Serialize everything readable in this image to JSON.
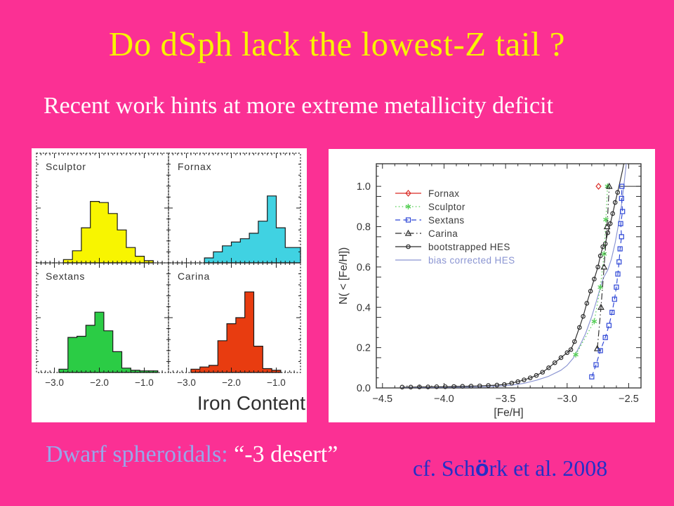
{
  "slide": {
    "title": "Do dSph lack the lowest-Z tail ?",
    "subtitle": "Recent work hints at more extreme metallicity deficit",
    "background_color": "#fb3094",
    "title_color": "#f8f400",
    "subtitle_color": "#ffffff"
  },
  "footer": {
    "left_term": "Dwarf spheroidals:",
    "left_quote": " “-3 desert”",
    "left_term_color": "#98a6ea",
    "left_quote_color": "#ffffff",
    "citation_prefix": "cf. Sch",
    "citation_o": "ö",
    "citation_suffix": "rk et al. 2008",
    "citation_color": "#2430c6"
  },
  "chart_data": [
    {
      "id": "dsph_iron_histograms",
      "type": "bar",
      "subtype": "histogram_grid_2x2",
      "xlabel": "Iron Content",
      "x_range": [
        -3.4,
        -0.46
      ],
      "x_ticks": [
        -3.0,
        -2.0,
        -1.0
      ],
      "x_tick_labels": [
        "−3.0",
        "−2.0",
        "−1.0"
      ],
      "text_color": "#333333",
      "panels": [
        {
          "name": "Sculptor",
          "color": "#f8f500",
          "bin_start": -2.8,
          "bin_width": 0.2,
          "values": [
            0.03,
            0.11,
            0.32,
            0.56,
            0.55,
            0.45,
            0.3,
            0.14,
            0.06,
            0.02
          ]
        },
        {
          "name": "Fornax",
          "color": "#40d2e2",
          "bin_start": -2.6,
          "bin_width": 0.2,
          "values": [
            0.045,
            0.1,
            0.155,
            0.19,
            0.22,
            0.27,
            0.38,
            0.61,
            0.32,
            0.14,
            0.14
          ]
        },
        {
          "name": "Sextans",
          "color": "#2bcc45",
          "bin_start": -2.9,
          "bin_width": 0.2,
          "values": [
            0.03,
            0.32,
            0.33,
            0.43,
            0.55,
            0.38,
            0.19,
            0.04,
            0.02,
            0.015,
            0.015
          ]
        },
        {
          "name": "Carina",
          "color": "#e83c10",
          "bin_start": -2.9,
          "bin_width": 0.2,
          "values": [
            0.03,
            0.05,
            0.065,
            0.29,
            0.445,
            0.5,
            0.735,
            0.24,
            0.035,
            0.02
          ]
        }
      ]
    },
    {
      "id": "cumulative_metallicity",
      "type": "line",
      "xlabel": "[Fe/H]",
      "ylabel": "N( < [Fe/H])",
      "x_range": [
        -4.55,
        -2.4
      ],
      "y_range": [
        0,
        1.112
      ],
      "x_ticks": [
        -4.5,
        -4.0,
        -3.5,
        -3.0,
        -2.5
      ],
      "x_tick_labels": [
        "−4.5",
        "−4.0",
        "−3.5",
        "−3.0",
        "−2.5"
      ],
      "y_ticks": [
        0.0,
        0.2,
        0.4,
        0.6,
        0.8,
        1.0
      ],
      "y_tick_labels": [
        "0.0",
        "0.2",
        "0.4",
        "0.6",
        "0.8",
        "1.0"
      ],
      "text_color": "#333333",
      "legend_position": "upper-left",
      "top_reference_line": {
        "y": 1.0,
        "x_start": -2.57,
        "x_end": -2.4,
        "color": "#2b2b2b"
      },
      "series": [
        {
          "name": "Fornax",
          "color": "#d92b25",
          "marker": "diamond",
          "line": "solid",
          "points": [
            [
              -2.745,
              1.0
            ]
          ]
        },
        {
          "name": "Sculptor",
          "color": "#58cf58",
          "marker": "asterisk",
          "line": "dotted",
          "points": [
            [
              -2.93,
              0.165
            ],
            [
              -2.78,
              0.33
            ],
            [
              -2.73,
              0.5
            ],
            [
              -2.7,
              0.665
            ],
            [
              -2.685,
              0.835
            ],
            [
              -2.672,
              1.0
            ]
          ]
        },
        {
          "name": "Sextans",
          "color": "#2c45d6",
          "marker": "square",
          "line": "dashed",
          "points": [
            [
              -2.8,
              0.055
            ],
            [
              -2.765,
              0.115
            ],
            [
              -2.73,
              0.185
            ],
            [
              -2.69,
              0.25
            ],
            [
              -2.66,
              0.31
            ],
            [
              -2.635,
              0.375
            ],
            [
              -2.615,
              0.44
            ],
            [
              -2.6,
              0.5
            ],
            [
              -2.588,
              0.565
            ],
            [
              -2.578,
              0.625
            ],
            [
              -2.57,
              0.69
            ],
            [
              -2.558,
              0.75
            ],
            [
              -2.565,
              0.815
            ],
            [
              -2.55,
              0.875
            ],
            [
              -2.558,
              0.94
            ],
            [
              -2.555,
              1.0
            ]
          ]
        },
        {
          "name": "Carina",
          "color": "#2b2b2b",
          "marker": "triangle",
          "line": "dashdot",
          "points": [
            [
              -2.755,
              0.195
            ],
            [
              -2.725,
              0.4
            ],
            [
              -2.7,
              0.6
            ],
            [
              -2.676,
              0.8
            ],
            [
              -2.658,
              1.0
            ]
          ]
        },
        {
          "name": "bootstrapped HES",
          "color": "#2b2b2b",
          "marker": "circle",
          "line": "solid",
          "points": [
            [
              -4.34,
              0.004
            ],
            [
              -4.27,
              0.004
            ],
            [
              -4.2,
              0.005
            ],
            [
              -4.13,
              0.005
            ],
            [
              -4.06,
              0.006
            ],
            [
              -3.99,
              0.006
            ],
            [
              -3.92,
              0.007
            ],
            [
              -3.85,
              0.008
            ],
            [
              -3.78,
              0.009
            ],
            [
              -3.71,
              0.01
            ],
            [
              -3.64,
              0.012
            ],
            [
              -3.57,
              0.014
            ],
            [
              -3.51,
              0.017
            ],
            [
              -3.45,
              0.024
            ],
            [
              -3.4,
              0.031
            ],
            [
              -3.35,
              0.04
            ],
            [
              -3.3,
              0.05
            ],
            [
              -3.25,
              0.062
            ],
            [
              -3.2,
              0.078
            ],
            [
              -3.15,
              0.1
            ],
            [
              -3.1,
              0.125
            ],
            [
              -3.05,
              0.15
            ],
            [
              -3.0,
              0.175
            ],
            [
              -2.97,
              0.19
            ],
            [
              -2.94,
              0.23
            ],
            [
              -2.9,
              0.3
            ],
            [
              -2.87,
              0.355
            ],
            [
              -2.84,
              0.42
            ],
            [
              -2.81,
              0.48
            ],
            [
              -2.78,
              0.54
            ],
            [
              -2.75,
              0.6
            ],
            [
              -2.73,
              0.655
            ],
            [
              -2.71,
              0.7
            ],
            [
              -2.69,
              0.715
            ],
            [
              -2.67,
              0.77
            ],
            [
              -2.65,
              0.815
            ],
            [
              -2.63,
              0.865
            ],
            [
              -2.61,
              0.92
            ],
            [
              -2.59,
              0.97
            ],
            [
              -2.57,
              1.025
            ],
            [
              -2.55,
              1.08
            ],
            [
              -2.54,
              1.112
            ]
          ]
        },
        {
          "name": "bias corrected HES",
          "color": "#8a94d2",
          "marker": "none",
          "line": "solid",
          "label_colored": true,
          "points": [
            [
              -4.34,
              0.002
            ],
            [
              -4.0,
              0.003
            ],
            [
              -3.7,
              0.005
            ],
            [
              -3.55,
              0.009
            ],
            [
              -3.45,
              0.014
            ],
            [
              -3.35,
              0.023
            ],
            [
              -3.25,
              0.038
            ],
            [
              -3.15,
              0.058
            ],
            [
              -3.05,
              0.088
            ],
            [
              -3.0,
              0.112
            ],
            [
              -2.95,
              0.148
            ],
            [
              -2.9,
              0.205
            ],
            [
              -2.85,
              0.27
            ],
            [
              -2.8,
              0.355
            ],
            [
              -2.76,
              0.435
            ],
            [
              -2.72,
              0.52
            ],
            [
              -2.7,
              0.552
            ],
            [
              -2.67,
              0.585
            ],
            [
              -2.64,
              0.64
            ],
            [
              -2.61,
              0.72
            ],
            [
              -2.58,
              0.82
            ],
            [
              -2.56,
              0.9
            ],
            [
              -2.54,
              1.0
            ],
            [
              -2.52,
              1.112
            ]
          ]
        }
      ]
    }
  ]
}
